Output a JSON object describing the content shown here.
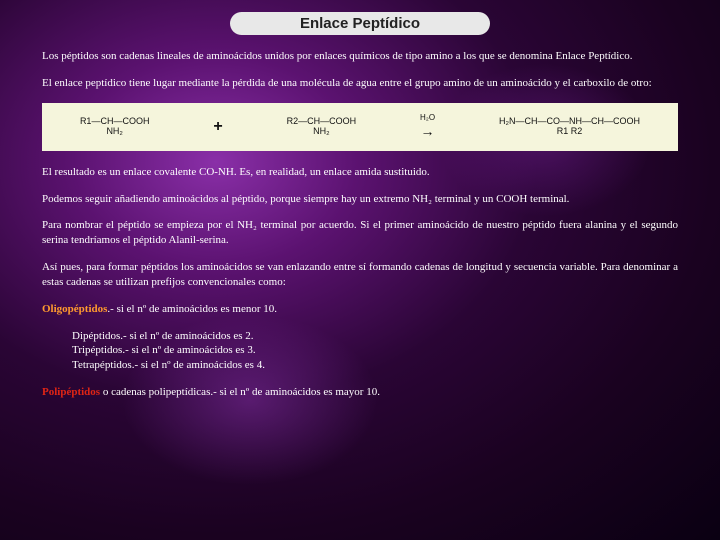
{
  "colors": {
    "background_dark": "#1a0228",
    "background_purple": "#5b1270",
    "text": "#ffffff",
    "pill_bg": "#e8e8e8",
    "pill_text": "#222222",
    "diagram_bg": "#f5f5dc",
    "highlight_orange": "#ff9a2e",
    "highlight_red": "#e02515"
  },
  "typography": {
    "body_font": "Georgia, Times New Roman, serif",
    "body_size_pt": 11,
    "title_font": "Arial, sans-serif",
    "title_size_pt": 15,
    "title_weight": "bold"
  },
  "title": "Enlace Peptídico",
  "paragraphs": {
    "p1": "Los péptidos son cadenas lineales de aminoácidos unidos por enlaces químicos de tipo amino a los que se denomina Enlace Peptídico.",
    "p2": "El enlace peptídico tiene lugar mediante la pérdida de una molécula de agua entre el grupo amino de un aminoácido y el carboxilo de otro:",
    "p3": "El resultado es un enlace covalente CO-NH. Es, en realidad, un enlace amida sustituido.",
    "p4": "Podemos seguir añadiendo aminoácidos al péptido, porque siempre hay un extremo NH₂ terminal y un COOH terminal.",
    "p5": "Para nombrar el péptido se empieza por el NH₂ terminal por acuerdo. Si el primer aminoácido de nuestro péptido fuera alanina y el segundo serina tendríamos el péptido Alanil-serina.",
    "p6": "Así pues, para formar péptidos los aminoácidos se van enlazando entre sí formando cadenas de longitud y secuencia variable. Para denominar a estas cadenas se utilizan prefijos convencionales como:",
    "oligo_label": "Oligopéptidos",
    "oligo_rest": ".- si el nº de aminoácidos es menor 10.",
    "dip": "Dipéptidos.- si el nº de aminoácidos es 2.",
    "trip": "Tripéptidos.- si el nº de aminoácidos es 3.",
    "tetra": "Tetrapéptidos.- si el nº de aminoácidos es 4.",
    "poli_label": "Polipéptidos",
    "poli_rest": " o cadenas polipeptídicas.- si el nº de aminoácidos es mayor 10."
  },
  "diagram": {
    "type": "chemical-reaction",
    "background_color": "#f5f5dc",
    "mol1_top": "R1—CH—COOH",
    "mol1_bot": "NH₂",
    "plus": "+",
    "mol2_top": "R2—CH—COOH",
    "mol2_bot": "NH₂",
    "arrow": "→",
    "h2o": "H₂O",
    "product_top": "H₂N—CH—CO—NH—CH—COOH",
    "product_bot": "R1                    R2"
  }
}
